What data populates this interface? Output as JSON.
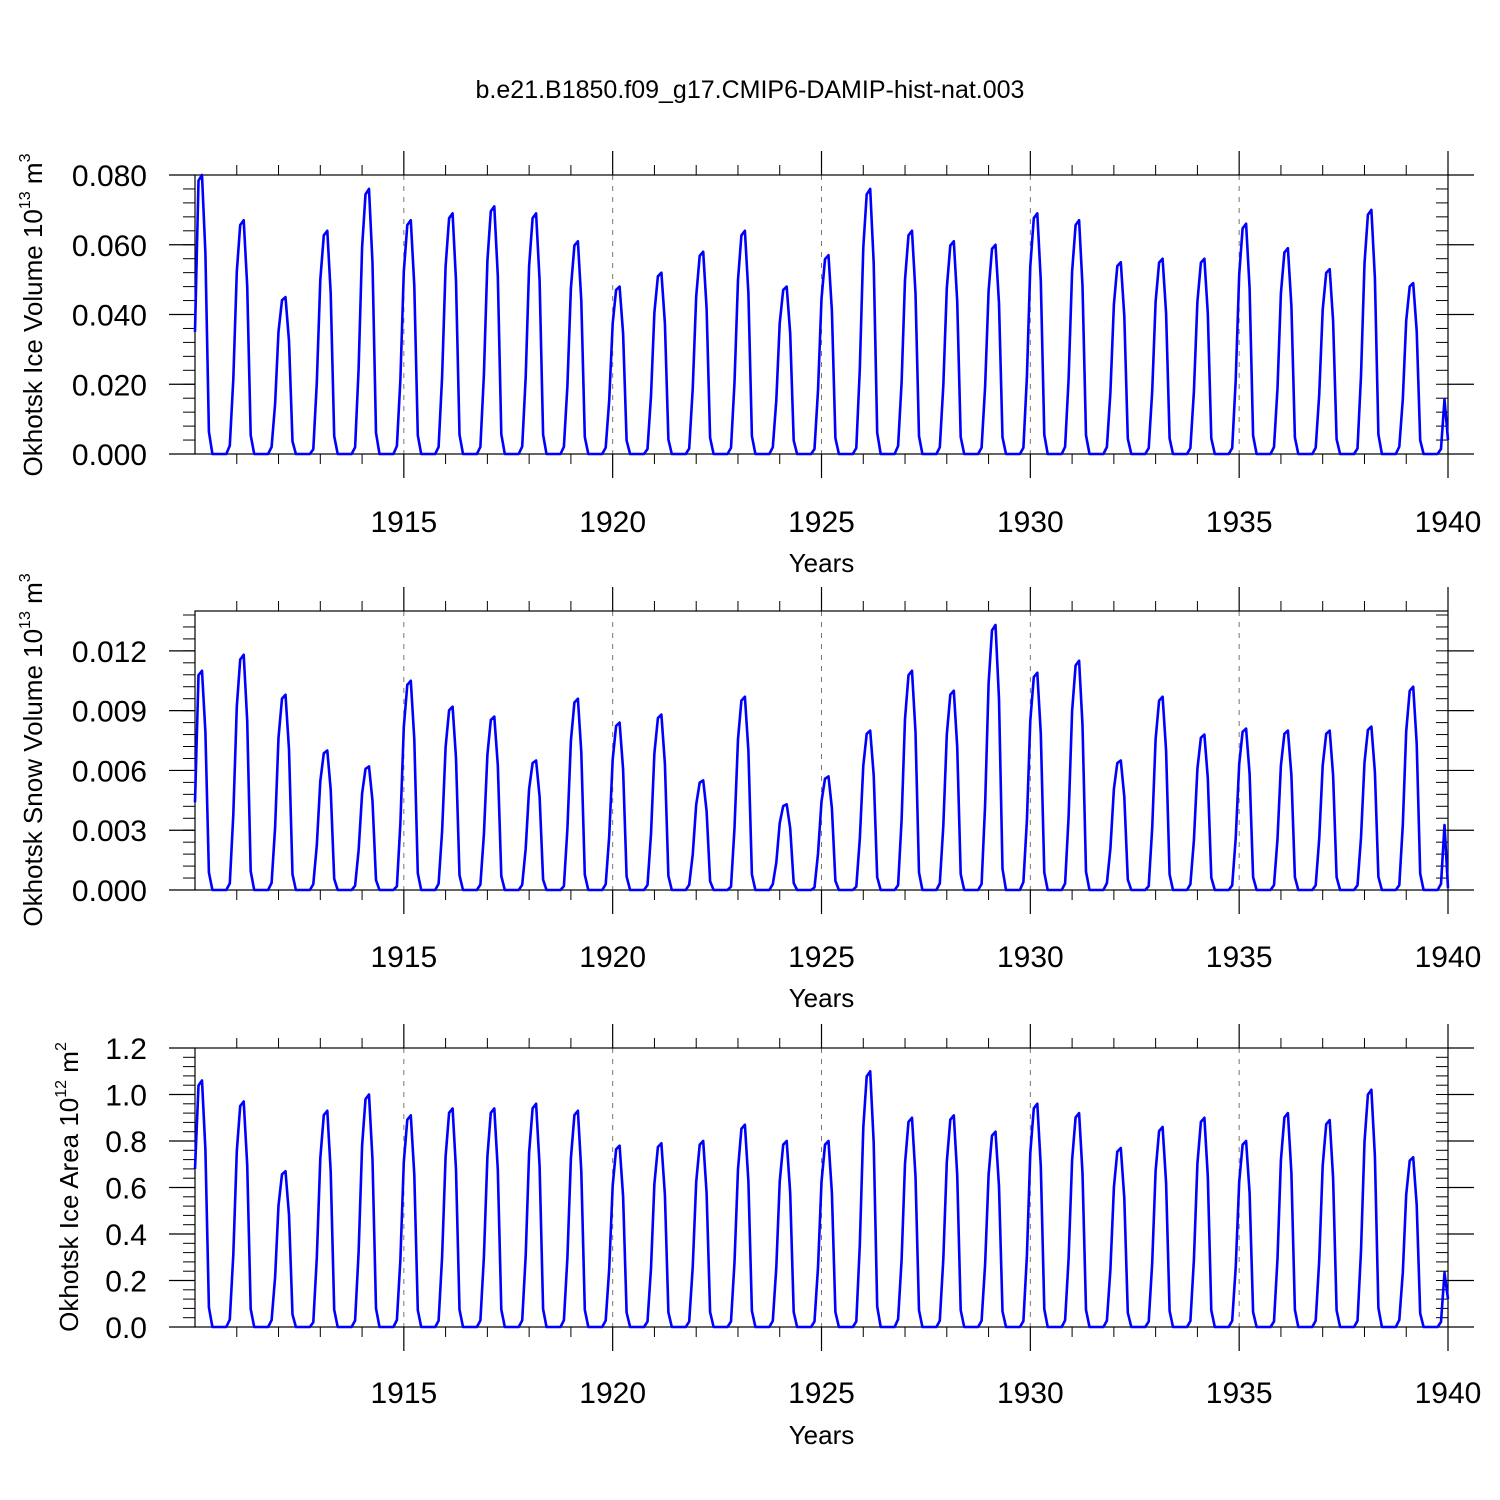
{
  "title": "b.e21.B1850.f09_g17.CMIP6-DAMIP-hist-nat.003",
  "colors": {
    "series": "#0000ff",
    "axis": "#000000",
    "grid": "#777777"
  },
  "chart_data": [
    {
      "type": "line",
      "ylabel": "Okhotsk Ice Volume 10",
      "ylabel_exp": "13",
      "ylabel_unit": " m",
      "ylabel_unit_exp": "3",
      "xlabel": "Years",
      "xlim": [
        1910,
        1940
      ],
      "ylim": [
        0,
        0.08
      ],
      "yticks": [
        0,
        0.02,
        0.04,
        0.06,
        0.08
      ],
      "ytick_labels": [
        "0.000",
        "0.020",
        "0.040",
        "0.060",
        "0.080"
      ],
      "xticks": [
        1915,
        1920,
        1925,
        1930,
        1935,
        1940
      ],
      "xtick_labels": [
        "1915",
        "1920",
        "1925",
        "1930",
        "1935",
        "1940"
      ],
      "grid": "dashed vertical at major x ticks",
      "series": [
        {
          "peaks": [
            0.08,
            0.067,
            0.045,
            0.064,
            0.076,
            0.067,
            0.069,
            0.071,
            0.069,
            0.061,
            0.048,
            0.052,
            0.058,
            0.064,
            0.048,
            0.057,
            0.076,
            0.064,
            0.061,
            0.06,
            0.069,
            0.067,
            0.055,
            0.056,
            0.056,
            0.066,
            0.059,
            0.053,
            0.07,
            0.049
          ],
          "start_value": 0.035,
          "end_value": 0.004
        }
      ]
    },
    {
      "type": "line",
      "ylabel": "Okhotsk Snow Volume 10",
      "ylabel_exp": "13",
      "ylabel_unit": " m",
      "ylabel_unit_exp": "3",
      "xlabel": "Years",
      "xlim": [
        1910,
        1940
      ],
      "ylim": [
        0,
        0.014
      ],
      "yticks": [
        0,
        0.003,
        0.006,
        0.009,
        0.012
      ],
      "ytick_labels": [
        "0.000",
        "0.003",
        "0.006",
        "0.009",
        "0.012"
      ],
      "xticks": [
        1915,
        1920,
        1925,
        1930,
        1935,
        1940
      ],
      "xtick_labels": [
        "1915",
        "1920",
        "1925",
        "1930",
        "1935",
        "1940"
      ],
      "grid": "dashed vertical at major x ticks",
      "series": [
        {
          "peaks": [
            0.011,
            0.0118,
            0.0098,
            0.007,
            0.0062,
            0.0105,
            0.0092,
            0.0087,
            0.0065,
            0.0096,
            0.0084,
            0.0088,
            0.0055,
            0.0097,
            0.0043,
            0.0057,
            0.008,
            0.011,
            0.01,
            0.0133,
            0.0109,
            0.0115,
            0.0065,
            0.0097,
            0.0078,
            0.0081,
            0.008,
            0.008,
            0.0082,
            0.0102
          ],
          "start_value": 0.0044,
          "end_value": 0.0001
        }
      ]
    },
    {
      "type": "line",
      "ylabel": "Okhotsk Ice Area 10",
      "ylabel_exp": "12",
      "ylabel_unit": " m",
      "ylabel_unit_exp": "2",
      "xlabel": "Years",
      "xlim": [
        1910,
        1940
      ],
      "ylim": [
        0,
        1.2
      ],
      "yticks": [
        0,
        0.2,
        0.4,
        0.6,
        0.8,
        1.0,
        1.2
      ],
      "ytick_labels": [
        "0.0",
        "0.2",
        "0.4",
        "0.6",
        "0.8",
        "1.0",
        "1.2"
      ],
      "xticks": [
        1915,
        1920,
        1925,
        1930,
        1935,
        1940
      ],
      "xtick_labels": [
        "1915",
        "1920",
        "1925",
        "1930",
        "1935",
        "1940"
      ],
      "grid": "dashed vertical at major x ticks",
      "series": [
        {
          "peaks": [
            1.06,
            0.97,
            0.67,
            0.93,
            1.0,
            0.91,
            0.94,
            0.94,
            0.96,
            0.93,
            0.78,
            0.79,
            0.8,
            0.87,
            0.8,
            0.8,
            1.1,
            0.9,
            0.91,
            0.84,
            0.96,
            0.92,
            0.77,
            0.86,
            0.9,
            0.8,
            0.92,
            0.89,
            1.02,
            0.73
          ],
          "start_value": 0.68,
          "end_value": 0.12
        }
      ]
    }
  ]
}
